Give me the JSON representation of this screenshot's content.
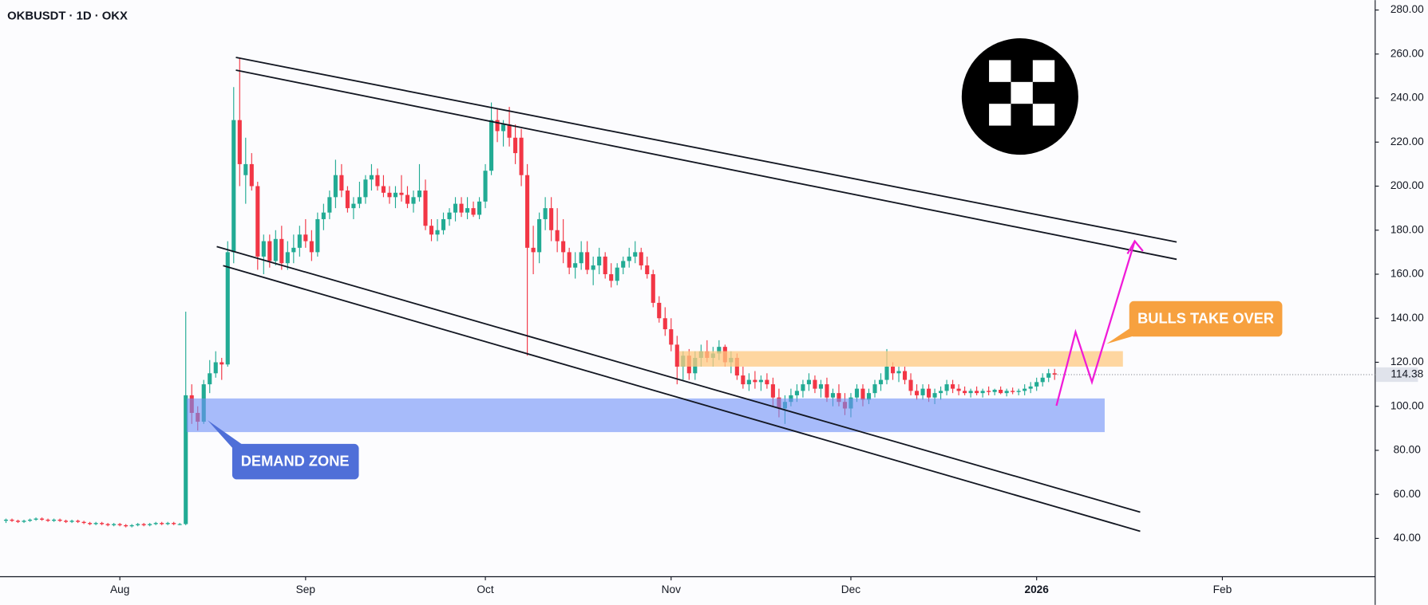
{
  "chart_data": {
    "type": "candlestick",
    "title": "OKBUSDT · 1D · OKX",
    "up_color": "#22ab94",
    "down_color": "#f23645",
    "xlim": [
      -1,
      228.5
    ],
    "ylim": [
      22.6,
      284.5
    ],
    "xticks": [
      {
        "value": 19,
        "label": "Aug"
      },
      {
        "value": 50,
        "label": "Sep"
      },
      {
        "value": 80,
        "label": "Oct"
      },
      {
        "value": 111,
        "label": "Nov"
      },
      {
        "value": 141,
        "label": "Dec"
      },
      {
        "value": 172,
        "label": "2026"
      },
      {
        "value": 203,
        "label": "Feb"
      }
    ],
    "yticks": [
      {
        "value": 40,
        "label": "40.00"
      },
      {
        "value": 60,
        "label": "60.00"
      },
      {
        "value": 80,
        "label": "80.00"
      },
      {
        "value": 100,
        "label": "100.00"
      },
      {
        "value": 120,
        "label": "120.00"
      },
      {
        "value": 140,
        "label": "140.00"
      },
      {
        "value": 160,
        "label": "160.00"
      },
      {
        "value": 180,
        "label": "180.00"
      },
      {
        "value": 200,
        "label": "200.00"
      },
      {
        "value": 220,
        "label": "220.00"
      },
      {
        "value": 240,
        "label": "240.00"
      },
      {
        "value": 260,
        "label": "260.00"
      },
      {
        "value": 280,
        "label": "280.00"
      }
    ],
    "annotations": [
      "DEMAND ZONE",
      "BULLS TAKE OVER"
    ],
    "ohlc": [
      [
        48,
        49,
        47,
        48.5
      ],
      [
        48.5,
        49,
        47.5,
        48
      ],
      [
        48,
        48.5,
        47,
        47.5
      ],
      [
        47.5,
        48.5,
        47,
        48
      ],
      [
        48,
        49,
        47.5,
        48.5
      ],
      [
        48.5,
        49.5,
        48,
        49
      ],
      [
        49,
        49.5,
        48,
        48.5
      ],
      [
        48.5,
        49,
        47.5,
        48
      ],
      [
        48,
        49,
        47.5,
        48.5
      ],
      [
        48.5,
        49,
        47.5,
        48
      ],
      [
        48,
        48.5,
        47,
        47.5
      ],
      [
        47.5,
        48.5,
        47,
        48
      ],
      [
        48,
        48.5,
        47,
        47.5
      ],
      [
        47.5,
        48,
        46.5,
        47
      ],
      [
        47,
        47.5,
        46,
        46.5
      ],
      [
        46.5,
        47.5,
        46,
        47
      ],
      [
        47,
        47.5,
        46,
        46.5
      ],
      [
        46.5,
        47,
        45.5,
        46
      ],
      [
        46,
        47,
        45.5,
        46.5
      ],
      [
        46.5,
        47,
        45.5,
        46
      ],
      [
        46,
        46.5,
        45,
        45.5
      ],
      [
        45.5,
        46.5,
        45,
        46
      ],
      [
        46,
        47,
        45.5,
        46.5
      ],
      [
        46.5,
        47,
        45.5,
        46
      ],
      [
        46,
        47,
        45.5,
        46.5
      ],
      [
        46.5,
        47.5,
        46,
        47
      ],
      [
        47,
        47.5,
        46,
        46.5
      ],
      [
        46.5,
        47.5,
        46,
        47
      ],
      [
        47,
        47.5,
        46,
        46.5
      ],
      [
        46.5,
        47,
        46,
        46.5
      ],
      [
        46.5,
        143,
        46,
        105
      ],
      [
        105,
        110,
        92,
        97
      ],
      [
        97,
        100,
        89,
        93
      ],
      [
        93,
        112,
        92,
        110
      ],
      [
        110,
        121,
        106,
        115
      ],
      [
        115,
        125,
        113,
        120
      ],
      [
        120,
        122,
        112,
        119
      ],
      [
        119,
        175,
        118,
        170
      ],
      [
        170,
        245,
        165,
        230
      ],
      [
        230,
        258,
        200,
        210
      ],
      [
        205,
        222,
        192,
        210
      ],
      [
        210,
        215,
        198,
        200
      ],
      [
        200,
        202,
        162,
        168
      ],
      [
        168,
        178,
        160,
        175
      ],
      [
        175,
        178,
        163,
        166
      ],
      [
        166,
        180,
        164,
        176
      ],
      [
        176,
        182,
        162,
        165
      ],
      [
        165,
        175,
        162,
        170
      ],
      [
        170,
        178,
        165,
        172
      ],
      [
        172,
        182,
        168,
        178
      ],
      [
        178,
        185,
        172,
        175
      ],
      [
        175,
        180,
        166,
        170
      ],
      [
        170,
        188,
        168,
        185
      ],
      [
        185,
        192,
        180,
        188
      ],
      [
        188,
        198,
        185,
        195
      ],
      [
        195,
        212,
        190,
        205
      ],
      [
        205,
        210,
        195,
        198
      ],
      [
        198,
        200,
        188,
        190
      ],
      [
        190,
        195,
        185,
        192
      ],
      [
        192,
        202,
        190,
        195
      ],
      [
        195,
        205,
        192,
        203
      ],
      [
        203,
        210,
        198,
        205
      ],
      [
        205,
        208,
        198,
        200
      ],
      [
        200,
        205,
        195,
        197
      ],
      [
        197,
        200,
        192,
        195
      ],
      [
        195,
        200,
        190,
        197
      ],
      [
        197,
        205,
        193,
        196
      ],
      [
        196,
        200,
        190,
        192
      ],
      [
        192,
        198,
        188,
        195
      ],
      [
        195,
        210,
        193,
        198
      ],
      [
        198,
        203,
        180,
        182
      ],
      [
        182,
        185,
        175,
        178
      ],
      [
        178,
        185,
        175,
        180
      ],
      [
        180,
        188,
        178,
        185
      ],
      [
        185,
        190,
        182,
        188
      ],
      [
        188,
        195,
        184,
        192
      ],
      [
        192,
        195,
        186,
        188
      ],
      [
        188,
        195,
        185,
        190
      ],
      [
        190,
        193,
        186,
        187
      ],
      [
        187,
        195,
        185,
        193
      ],
      [
        193,
        210,
        190,
        207
      ],
      [
        207,
        238,
        205,
        230
      ],
      [
        230,
        235,
        220,
        225
      ],
      [
        225,
        230,
        218,
        228
      ],
      [
        228,
        236,
        218,
        222
      ],
      [
        222,
        228,
        210,
        215
      ],
      [
        222,
        226,
        200,
        205
      ],
      [
        205,
        210,
        123,
        172
      ],
      [
        172,
        182,
        160,
        170
      ],
      [
        170,
        188,
        165,
        185
      ],
      [
        185,
        195,
        180,
        190
      ],
      [
        190,
        195,
        175,
        180
      ],
      [
        180,
        190,
        170,
        175
      ],
      [
        175,
        185,
        165,
        170
      ],
      [
        170,
        172,
        160,
        163
      ],
      [
        163,
        170,
        158,
        165
      ],
      [
        165,
        175,
        162,
        170
      ],
      [
        170,
        175,
        160,
        162
      ],
      [
        162,
        168,
        155,
        164
      ],
      [
        164,
        172,
        160,
        168
      ],
      [
        168,
        170,
        158,
        160
      ],
      [
        160,
        165,
        154,
        157
      ],
      [
        157,
        165,
        155,
        163
      ],
      [
        163,
        168,
        160,
        166
      ],
      [
        166,
        172,
        163,
        168
      ],
      [
        168,
        175,
        165,
        170
      ],
      [
        170,
        172,
        162,
        164
      ],
      [
        164,
        168,
        158,
        160
      ],
      [
        160,
        162,
        145,
        147
      ],
      [
        147,
        150,
        138,
        140
      ],
      [
        140,
        145,
        132,
        135
      ],
      [
        135,
        140,
        125,
        128
      ],
      [
        128,
        132,
        110,
        118
      ],
      [
        118,
        125,
        112,
        123
      ],
      [
        123,
        126,
        112,
        115
      ],
      [
        115,
        125,
        112,
        122
      ],
      [
        122,
        128,
        118,
        125
      ],
      [
        125,
        130,
        120,
        122
      ],
      [
        122,
        127,
        118,
        124
      ],
      [
        124,
        130,
        121,
        127
      ],
      [
        127,
        128,
        118,
        120
      ],
      [
        120,
        125,
        115,
        122
      ],
      [
        122,
        124,
        112,
        114
      ],
      [
        114,
        118,
        108,
        110
      ],
      [
        110,
        115,
        107,
        112
      ],
      [
        112,
        116,
        108,
        111
      ],
      [
        111,
        114,
        107,
        112
      ],
      [
        112,
        115,
        108,
        110
      ],
      [
        110,
        113,
        100,
        104
      ],
      [
        104,
        108,
        95,
        99
      ],
      [
        99,
        105,
        92,
        102
      ],
      [
        102,
        108,
        100,
        105
      ],
      [
        105,
        110,
        102,
        107
      ],
      [
        107,
        112,
        104,
        110
      ],
      [
        110,
        115,
        107,
        112
      ],
      [
        112,
        114,
        106,
        108
      ],
      [
        108,
        112,
        104,
        110
      ],
      [
        110,
        113,
        102,
        104
      ],
      [
        104,
        108,
        100,
        106
      ],
      [
        106,
        110,
        100,
        102
      ],
      [
        102,
        106,
        96,
        99
      ],
      [
        99,
        106,
        95,
        104
      ],
      [
        104,
        110,
        102,
        108
      ],
      [
        108,
        110,
        100,
        103
      ],
      [
        103,
        108,
        101,
        106
      ],
      [
        106,
        112,
        104,
        110
      ],
      [
        110,
        115,
        107,
        112
      ],
      [
        112,
        126,
        110,
        118
      ],
      [
        118,
        120,
        112,
        115
      ],
      [
        115,
        118,
        111,
        116
      ],
      [
        116,
        118,
        110,
        112
      ],
      [
        112,
        115,
        105,
        107
      ],
      [
        107,
        110,
        103,
        105
      ],
      [
        105,
        110,
        103,
        108
      ],
      [
        108,
        110,
        102,
        104
      ],
      [
        104,
        108,
        101,
        106
      ],
      [
        106,
        109,
        103,
        107
      ],
      [
        107,
        112,
        105,
        110
      ],
      [
        110,
        112,
        106,
        108
      ],
      [
        108,
        110,
        105,
        107
      ],
      [
        107,
        109,
        105,
        106
      ],
      [
        106,
        108,
        104,
        107
      ],
      [
        107,
        109,
        105,
        106
      ],
      [
        106,
        108,
        104,
        107
      ],
      [
        107,
        109,
        105,
        106.5
      ],
      [
        106.5,
        108,
        105,
        107.5
      ],
      [
        107.5,
        109,
        105.5,
        106
      ],
      [
        106,
        108,
        104.5,
        107
      ],
      [
        107,
        108.5,
        105.5,
        106.5
      ],
      [
        106.5,
        108,
        105,
        107
      ],
      [
        107,
        110,
        105,
        108
      ],
      [
        108,
        111,
        106,
        109
      ],
      [
        109,
        113,
        107,
        111
      ],
      [
        111,
        115,
        109,
        113
      ],
      [
        113,
        117,
        111,
        115
      ],
      [
        115,
        117,
        112,
        114.38
      ]
    ]
  }
}
